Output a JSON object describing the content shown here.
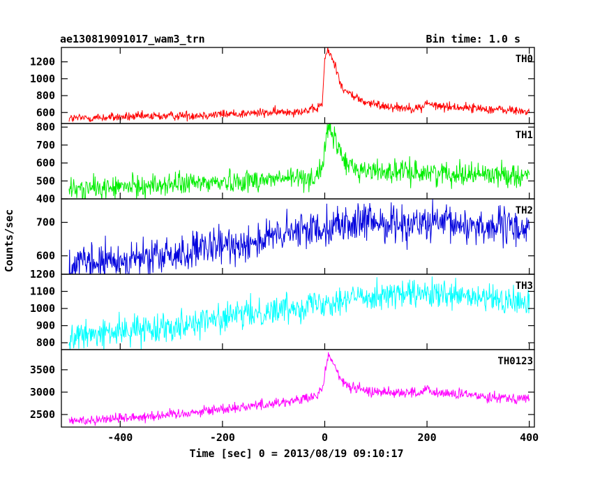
{
  "header": {
    "title": "ae130819091017_wam3_trn",
    "bin_time": "Bin time: 1.0 s"
  },
  "chart_data": {
    "type": "line",
    "xlabel": "Time [sec] 0 = 2013/08/19 09:10:17",
    "ylabel": "Counts/sec",
    "xlim": [
      -515,
      410
    ],
    "xticks": [
      -400,
      -200,
      0,
      200,
      400
    ],
    "x_range": [
      -500,
      400
    ],
    "x_step": 1,
    "grid": false,
    "panels": [
      {
        "name": "TH0",
        "color": "#ff0000",
        "ylim": [
          470,
          1370
        ],
        "yticks": [
          600,
          800,
          1000,
          1200
        ],
        "keypoints": [
          [
            -500,
            530
          ],
          [
            -300,
            560
          ],
          [
            -100,
            600
          ],
          [
            -20,
            630
          ],
          [
            -5,
            700
          ],
          [
            0,
            1220
          ],
          [
            5,
            1330
          ],
          [
            12,
            1280
          ],
          [
            25,
            1080
          ],
          [
            35,
            870
          ],
          [
            50,
            820
          ],
          [
            75,
            730
          ],
          [
            100,
            690
          ],
          [
            150,
            660
          ],
          [
            190,
            650
          ],
          [
            200,
            730
          ],
          [
            210,
            680
          ],
          [
            300,
            650
          ],
          [
            400,
            610
          ]
        ],
        "noise": 28
      },
      {
        "name": "TH1",
        "color": "#00ee00",
        "ylim": [
          400,
          820
        ],
        "yticks": [
          400,
          500,
          600,
          700,
          800
        ],
        "keypoints": [
          [
            -500,
            450
          ],
          [
            -300,
            480
          ],
          [
            -100,
            510
          ],
          [
            -20,
            520
          ],
          [
            -5,
            570
          ],
          [
            0,
            690
          ],
          [
            8,
            790
          ],
          [
            20,
            730
          ],
          [
            40,
            600
          ],
          [
            70,
            560
          ],
          [
            150,
            550
          ],
          [
            300,
            540
          ],
          [
            400,
            530
          ]
        ],
        "noise": 32
      },
      {
        "name": "TH2",
        "color": "#0000dd",
        "ylim": [
          545,
          770
        ],
        "yticks": [
          600,
          700
        ],
        "keypoints": [
          [
            -500,
            570
          ],
          [
            -300,
            600
          ],
          [
            -100,
            655
          ],
          [
            0,
            690
          ],
          [
            100,
            700
          ],
          [
            200,
            695
          ],
          [
            300,
            690
          ],
          [
            400,
            680
          ]
        ],
        "noise": 28
      },
      {
        "name": "TH3",
        "color": "#00ffff",
        "ylim": [
          760,
          1200
        ],
        "yticks": [
          800,
          900,
          1000,
          1100,
          1200
        ],
        "keypoints": [
          [
            -500,
            830
          ],
          [
            -300,
            900
          ],
          [
            -100,
            990
          ],
          [
            0,
            1040
          ],
          [
            100,
            1080
          ],
          [
            200,
            1080
          ],
          [
            300,
            1060
          ],
          [
            400,
            1030
          ]
        ],
        "noise": 42
      },
      {
        "name": "TH0123",
        "color": "#ff00ff",
        "ylim": [
          2220,
          3950
        ],
        "yticks": [
          2500,
          3000,
          3500
        ],
        "keypoints": [
          [
            -500,
            2350
          ],
          [
            -300,
            2500
          ],
          [
            -100,
            2750
          ],
          [
            -20,
            2880
          ],
          [
            -5,
            3050
          ],
          [
            0,
            3400
          ],
          [
            7,
            3830
          ],
          [
            18,
            3650
          ],
          [
            30,
            3270
          ],
          [
            50,
            3120
          ],
          [
            80,
            3020
          ],
          [
            150,
            3000
          ],
          [
            190,
            2980
          ],
          [
            200,
            3060
          ],
          [
            210,
            2990
          ],
          [
            300,
            2920
          ],
          [
            400,
            2850
          ]
        ],
        "noise": 60
      }
    ]
  }
}
